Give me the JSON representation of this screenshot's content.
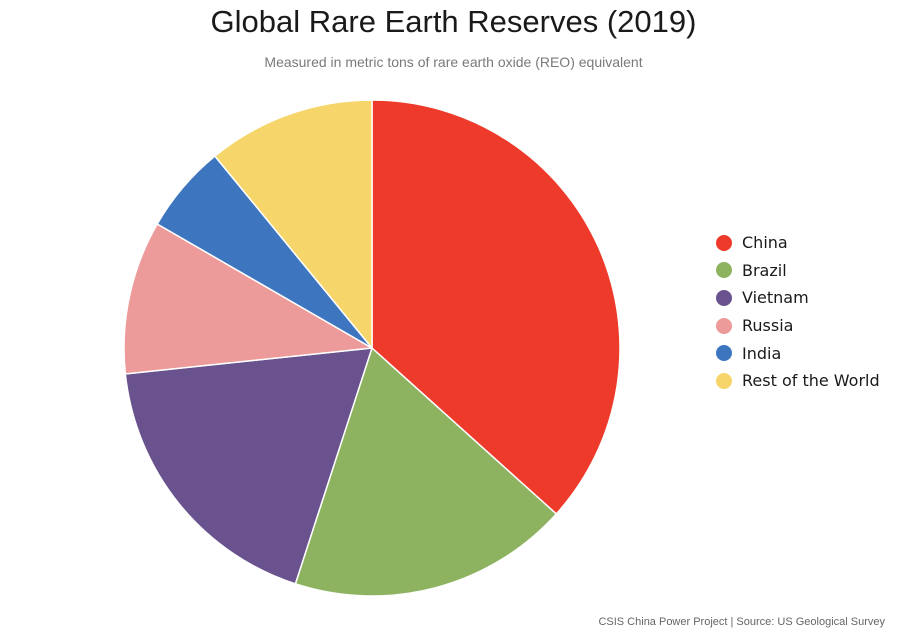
{
  "title": "Global Rare Earth Reserves (2019)",
  "subtitle": "Measured in metric tons of rare earth oxide (REO) equivalent",
  "source": "CSIS China Power Project | Source: US Geological Survey",
  "chart_data": {
    "type": "pie",
    "title": "Global Rare Earth Reserves (2019)",
    "subtitle": "Measured in metric tons of rare earth oxide (REO) equivalent",
    "legend_position": "right",
    "start_angle": "top, clockwise",
    "slices": [
      {
        "label": "China",
        "value": 44000000,
        "color": "#ed3a2a"
      },
      {
        "label": "Brazil",
        "value": 22000000,
        "color": "#8db361"
      },
      {
        "label": "Vietnam",
        "value": 22000000,
        "color": "#69528d"
      },
      {
        "label": "Russia",
        "value": 12000000,
        "color": "#ec9a9a"
      },
      {
        "label": "India",
        "value": 6900000,
        "color": "#3d76bf"
      },
      {
        "label": "Rest of the World",
        "value": 13100000,
        "color": "#f6d66a"
      }
    ]
  }
}
